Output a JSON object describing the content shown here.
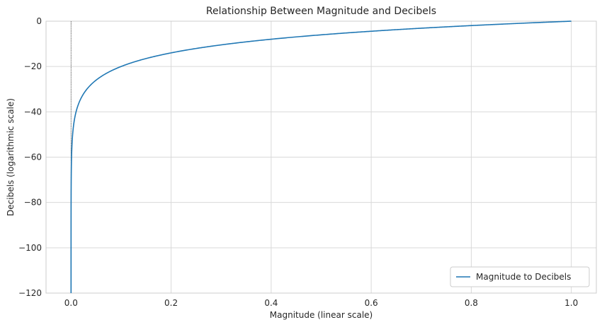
{
  "chart_data": {
    "type": "line",
    "title": "Relationship Between Magnitude and Decibels",
    "xlabel": "Magnitude (linear scale)",
    "ylabel": "Decibels (logarithmic scale)",
    "xlim": [
      -0.05,
      1.05
    ],
    "ylim": [
      -120,
      0
    ],
    "x_ticks": [
      0.0,
      0.2,
      0.4,
      0.6,
      0.8,
      1.0
    ],
    "x_tick_labels": [
      "0.0",
      "0.2",
      "0.4",
      "0.6",
      "0.8",
      "1.0"
    ],
    "y_ticks": [
      0,
      -20,
      -40,
      -60,
      -80,
      -100,
      -120
    ],
    "y_tick_labels": [
      "0",
      "−20",
      "−40",
      "−60",
      "−80",
      "−100",
      "−120"
    ],
    "grid": true,
    "legend_position": "lower-right",
    "series": [
      {
        "name": "Magnitude to Decibels",
        "color": "#1f77b4",
        "function": "20*log10(x)",
        "x": [
          1e-06,
          1e-05,
          0.0001,
          0.001,
          0.002,
          0.005,
          0.01,
          0.02,
          0.03,
          0.05,
          0.075,
          0.1,
          0.15,
          0.2,
          0.25,
          0.3,
          0.4,
          0.5,
          0.6,
          0.7,
          0.8,
          0.9,
          1.0
        ],
        "values": [
          -120,
          -100,
          -80,
          -60,
          -54,
          -46,
          -40,
          -34,
          -30.5,
          -26,
          -22.5,
          -20,
          -16.5,
          -14,
          -12,
          -10.5,
          -8,
          -6,
          -4.4,
          -3.1,
          -1.9,
          -0.9,
          0
        ]
      }
    ],
    "annotations": [
      {
        "type": "vline",
        "x": 0.0,
        "style": "dotted"
      }
    ]
  }
}
